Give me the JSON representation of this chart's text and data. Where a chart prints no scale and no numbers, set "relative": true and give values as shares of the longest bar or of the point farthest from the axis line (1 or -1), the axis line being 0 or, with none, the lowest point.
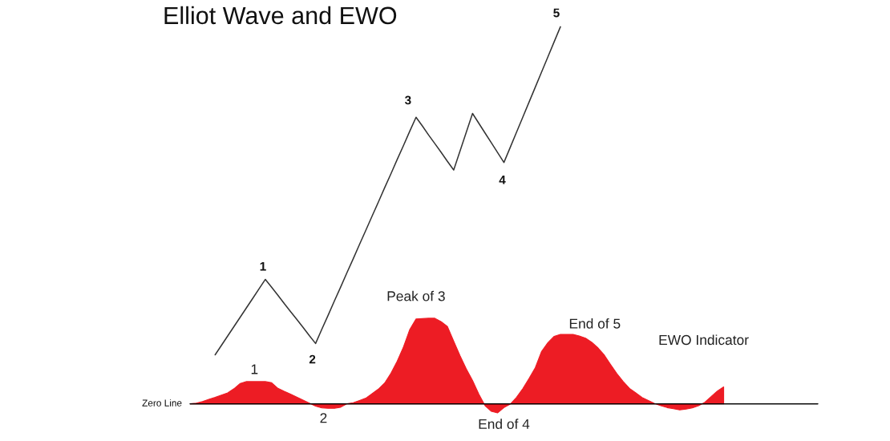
{
  "chart_data": {
    "type": "line",
    "title": "Elliot Wave and EWO",
    "relative": true,
    "tick_labels": false,
    "categories": [
      null,
      null,
      null,
      null,
      null,
      null,
      null,
      null,
      null,
      null,
      null,
      null,
      null,
      null,
      null,
      null,
      null,
      null,
      null,
      null,
      null,
      null,
      null,
      null,
      null,
      null,
      null,
      null,
      null,
      null,
      null,
      null,
      null,
      null,
      null,
      null,
      null,
      null,
      null,
      null,
      null,
      null,
      null,
      null,
      null,
      null,
      null,
      null,
      null,
      null,
      null,
      null,
      null,
      null,
      null,
      null,
      null,
      null,
      null,
      null,
      null,
      null,
      null,
      null,
      null,
      null,
      null,
      null,
      null,
      null,
      null,
      null,
      null,
      null,
      null,
      null,
      null,
      null,
      null,
      null,
      null,
      null,
      null,
      null,
      null,
      null,
      null,
      null,
      null,
      null,
      null,
      null,
      null,
      null,
      null,
      null,
      null,
      null,
      null,
      null,
      null
    ],
    "series": [
      {
        "color": "#333333",
        "values": [
          null,
          null,
          null,
          null,
          0.13,
          0.155,
          0.18,
          0.205,
          0.23,
          0.255,
          0.28,
          0.305,
          0.33,
          0.309,
          0.288,
          0.266,
          0.245,
          0.224,
          0.203,
          0.181,
          0.16,
          0.198,
          0.235,
          0.273,
          0.31,
          0.348,
          0.385,
          0.423,
          0.46,
          0.498,
          0.535,
          0.573,
          0.61,
          0.648,
          0.685,
          0.723,
          0.76,
          0.737,
          0.713,
          0.69,
          0.667,
          0.643,
          0.62,
          0.67,
          0.72,
          0.77,
          0.744,
          0.718,
          0.692,
          0.666,
          0.64,
          0.68,
          0.72,
          0.76,
          0.8,
          0.84,
          0.88,
          0.92,
          0.96,
          1,
          null,
          null,
          null,
          null,
          null,
          null,
          null,
          null,
          null,
          null,
          null,
          null,
          null,
          null,
          null,
          null,
          null,
          null,
          null,
          null,
          null,
          null,
          null,
          null,
          null,
          null,
          null,
          null,
          null,
          null,
          null,
          null,
          null,
          null,
          null,
          null,
          null,
          null,
          null,
          null,
          null
        ]
      },
      {
        "type": "area",
        "color": "#ed1c24",
        "values": [
          0,
          0.002,
          0.006,
          0.012,
          0.017,
          0.023,
          0.029,
          0.04,
          0.054,
          0.059,
          0.059,
          0.059,
          0.059,
          0.056,
          0.041,
          0.033,
          0.026,
          0.018,
          0.01,
          0.002,
          -0.006,
          -0.011,
          -0.012,
          -0.012,
          -0.009,
          0,
          0.003,
          0.009,
          0.015,
          0.027,
          0.039,
          0.055,
          0.081,
          0.113,
          0.151,
          0.197,
          0.225,
          0.226,
          0.227,
          0.227,
          0.218,
          0.205,
          0.166,
          0.128,
          0.093,
          0.062,
          0.026,
          -0.005,
          -0.02,
          -0.024,
          -0.01,
          -0.001,
          0.017,
          0.04,
          0.067,
          0.096,
          0.139,
          0.162,
          0.179,
          0.184,
          0.184,
          0.184,
          0.18,
          0.174,
          0.163,
          0.148,
          0.129,
          0.104,
          0.08,
          0.059,
          0.041,
          0.029,
          0.017,
          0.009,
          0.001,
          -0.005,
          -0.01,
          -0.013,
          -0.016,
          -0.014,
          -0.011,
          -0.005,
          0.004,
          0.019,
          0.034,
          0.045,
          null,
          null,
          null,
          null,
          null,
          null,
          null,
          null,
          null,
          null,
          null,
          null,
          null,
          null,
          null
        ]
      }
    ],
    "ref_lines": [
      {
        "axis": "y",
        "value": 0,
        "label": "Zero Line",
        "color": "#000000"
      }
    ],
    "annotations": [
      "1",
      "2",
      "3",
      "4",
      "5",
      "1",
      "2",
      "Peak of 3",
      "End of 4",
      "End of 5",
      "EWO Indicator"
    ]
  }
}
